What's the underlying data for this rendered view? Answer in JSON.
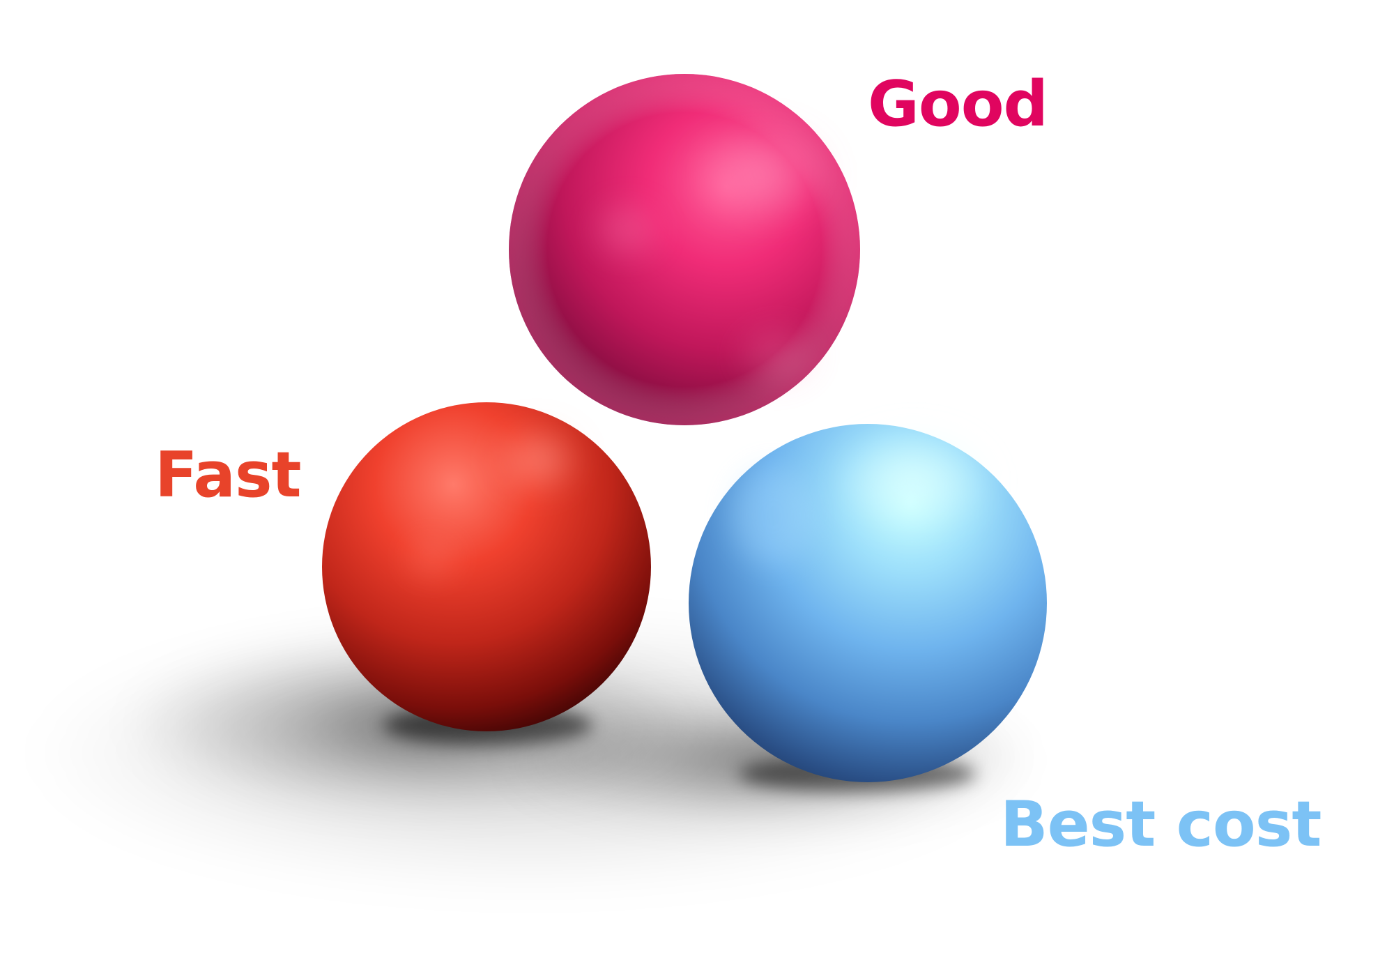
{
  "labels": {
    "good": "Good",
    "fast": "Fast",
    "best_cost": "Best cost"
  },
  "colors": {
    "good": "#E0055F",
    "fast": "#E8432A",
    "best_cost": "#7CC2F5",
    "background": "#FFFFFF"
  },
  "objects": {
    "pink_sphere": "pink-sphere",
    "red_sphere": "red-sphere",
    "blue_sphere": "blue-sphere"
  }
}
